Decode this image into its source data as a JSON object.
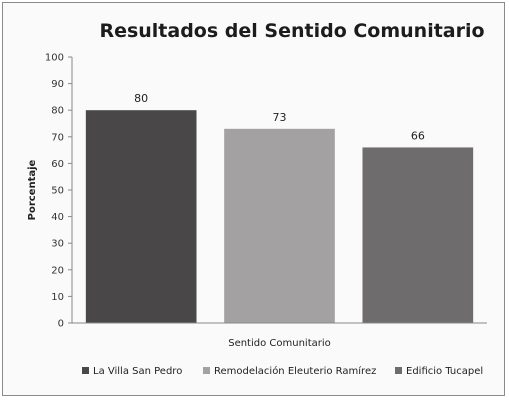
{
  "chart_data": {
    "type": "bar",
    "title": "Resultados del Sentido Comunitario",
    "xlabel": "Sentido Comunitario",
    "ylabel": "Porcentaje",
    "ylim": [
      0,
      100
    ],
    "yticks": [
      0,
      10,
      20,
      30,
      40,
      50,
      60,
      70,
      80,
      90,
      100
    ],
    "grid": false,
    "legend_position": "bottom",
    "series": [
      {
        "name": "La Villa San Pedro",
        "value": 80,
        "color": "#4a4748"
      },
      {
        "name": "Remodelación Eleuterio Ramírez",
        "value": 73,
        "color": "#a3a1a2"
      },
      {
        "name": "Edificio Tucapel",
        "value": 66,
        "color": "#6e6c6d"
      }
    ]
  }
}
